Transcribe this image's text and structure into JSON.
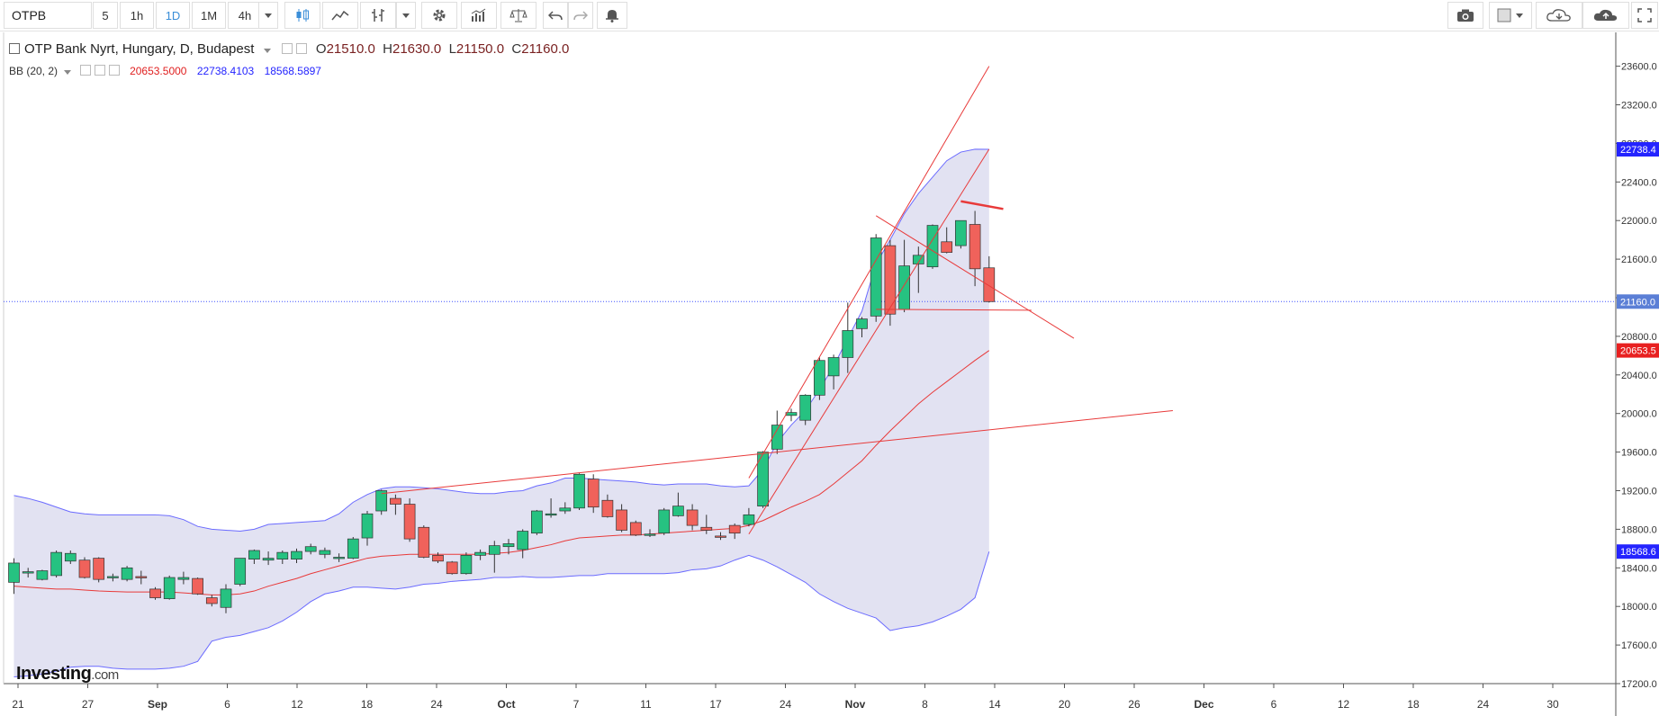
{
  "toolbar": {
    "symbol": "OTPB",
    "intervals": [
      "5",
      "1h",
      "1D",
      "1M",
      "4h"
    ],
    "active_interval": "1D"
  },
  "legend": {
    "title": "OTP Bank Nyrt, Hungary, D, Budapest",
    "open_label": "O",
    "open": "21510.0",
    "high_label": "H",
    "high": "21630.0",
    "low_label": "L",
    "low": "21150.0",
    "close_label": "C",
    "close": "21160.0",
    "bb_label": "BB (20, 2)",
    "bb_middle": "20653.5000",
    "bb_upper": "22738.4103",
    "bb_lower": "18568.5897"
  },
  "logo": {
    "main": "Investing",
    "suffix": ".com"
  },
  "colors": {
    "up": "#26c281",
    "down": "#f0625b",
    "band": "#6b6bff",
    "band_fill": "#e2e2f2",
    "middle": "#e83a3a",
    "trend": "#e83a3a",
    "price_line": "#3f51ff"
  },
  "chart_data": {
    "type": "candlestick",
    "title": "OTP Bank Nyrt, Hungary, D, Budapest",
    "x_tick_labels": [
      "21",
      "27",
      "Sep",
      "6",
      "12",
      "18",
      "24",
      "Oct",
      "7",
      "11",
      "17",
      "24",
      "Nov",
      "8",
      "14",
      "20",
      "26",
      "Dec",
      "6",
      "12",
      "18",
      "24",
      "30"
    ],
    "y_tick_labels": [
      "17200.0",
      "17600.0",
      "18000.0",
      "18400.0",
      "18800.0",
      "19200.0",
      "19600.0",
      "20000.0",
      "20400.0",
      "20800.0",
      "21200.0",
      "21600.0",
      "22000.0",
      "22400.0",
      "22800.0",
      "23200.0",
      "23600.0"
    ],
    "ylim": [
      17150,
      23900
    ],
    "price_tags": [
      {
        "label": "22738.4",
        "value": 22738.4,
        "color": "#2424ff"
      },
      {
        "label": "21160.0",
        "value": 21160.0,
        "color": "#5b7fd6"
      },
      {
        "label": "20653.5",
        "value": 20653.5,
        "color": "#e82020"
      },
      {
        "label": "18568.6",
        "value": 18568.6,
        "color": "#2424ff"
      }
    ],
    "last_close": 21160.0,
    "candles": [
      {
        "o": 18250,
        "h": 18500,
        "l": 18130,
        "c": 18450
      },
      {
        "o": 18350,
        "h": 18400,
        "l": 18300,
        "c": 18360
      },
      {
        "o": 18280,
        "h": 18380,
        "l": 18270,
        "c": 18370
      },
      {
        "o": 18320,
        "h": 18580,
        "l": 18300,
        "c": 18560
      },
      {
        "o": 18470,
        "h": 18580,
        "l": 18440,
        "c": 18550
      },
      {
        "o": 18480,
        "h": 18510,
        "l": 18290,
        "c": 18300
      },
      {
        "o": 18500,
        "h": 18510,
        "l": 18250,
        "c": 18280
      },
      {
        "o": 18300,
        "h": 18340,
        "l": 18260,
        "c": 18310
      },
      {
        "o": 18280,
        "h": 18420,
        "l": 18260,
        "c": 18400
      },
      {
        "o": 18310,
        "h": 18370,
        "l": 18230,
        "c": 18300
      },
      {
        "o": 18180,
        "h": 18200,
        "l": 18070,
        "c": 18090
      },
      {
        "o": 18080,
        "h": 18320,
        "l": 18070,
        "c": 18300
      },
      {
        "o": 18280,
        "h": 18360,
        "l": 18230,
        "c": 18300
      },
      {
        "o": 18290,
        "h": 18300,
        "l": 18120,
        "c": 18130
      },
      {
        "o": 18090,
        "h": 18120,
        "l": 18000,
        "c": 18030
      },
      {
        "o": 17990,
        "h": 18230,
        "l": 17930,
        "c": 18180
      },
      {
        "o": 18230,
        "h": 18500,
        "l": 18210,
        "c": 18500
      },
      {
        "o": 18490,
        "h": 18590,
        "l": 18440,
        "c": 18580
      },
      {
        "o": 18480,
        "h": 18570,
        "l": 18430,
        "c": 18500
      },
      {
        "o": 18490,
        "h": 18580,
        "l": 18440,
        "c": 18560
      },
      {
        "o": 18490,
        "h": 18600,
        "l": 18450,
        "c": 18570
      },
      {
        "o": 18570,
        "h": 18650,
        "l": 18540,
        "c": 18620
      },
      {
        "o": 18540,
        "h": 18610,
        "l": 18500,
        "c": 18580
      },
      {
        "o": 18500,
        "h": 18550,
        "l": 18460,
        "c": 18510
      },
      {
        "o": 18500,
        "h": 18720,
        "l": 18490,
        "c": 18700
      },
      {
        "o": 18710,
        "h": 18990,
        "l": 18630,
        "c": 18960
      },
      {
        "o": 18990,
        "h": 19210,
        "l": 18950,
        "c": 19200
      },
      {
        "o": 19120,
        "h": 19160,
        "l": 18950,
        "c": 19060
      },
      {
        "o": 19060,
        "h": 19120,
        "l": 18670,
        "c": 18700
      },
      {
        "o": 18820,
        "h": 18840,
        "l": 18500,
        "c": 18510
      },
      {
        "o": 18530,
        "h": 18560,
        "l": 18450,
        "c": 18470
      },
      {
        "o": 18460,
        "h": 18470,
        "l": 18330,
        "c": 18340
      },
      {
        "o": 18340,
        "h": 18560,
        "l": 18330,
        "c": 18530
      },
      {
        "o": 18530,
        "h": 18590,
        "l": 18480,
        "c": 18560
      },
      {
        "o": 18540,
        "h": 18680,
        "l": 18350,
        "c": 18630
      },
      {
        "o": 18620,
        "h": 18700,
        "l": 18540,
        "c": 18650
      },
      {
        "o": 18590,
        "h": 18800,
        "l": 18500,
        "c": 18780
      },
      {
        "o": 18760,
        "h": 19000,
        "l": 18740,
        "c": 18990
      },
      {
        "o": 18950,
        "h": 19120,
        "l": 18920,
        "c": 18960
      },
      {
        "o": 18990,
        "h": 19080,
        "l": 18960,
        "c": 19020
      },
      {
        "o": 19020,
        "h": 19380,
        "l": 19000,
        "c": 19370
      },
      {
        "o": 19320,
        "h": 19370,
        "l": 18970,
        "c": 19030
      },
      {
        "o": 19100,
        "h": 19160,
        "l": 18920,
        "c": 18930
      },
      {
        "o": 19000,
        "h": 19060,
        "l": 18770,
        "c": 18790
      },
      {
        "o": 18870,
        "h": 18890,
        "l": 18730,
        "c": 18740
      },
      {
        "o": 18740,
        "h": 18800,
        "l": 18720,
        "c": 18750
      },
      {
        "o": 18760,
        "h": 19020,
        "l": 18740,
        "c": 19000
      },
      {
        "o": 18940,
        "h": 19180,
        "l": 18930,
        "c": 19040
      },
      {
        "o": 19000,
        "h": 19060,
        "l": 18790,
        "c": 18840
      },
      {
        "o": 18820,
        "h": 18950,
        "l": 18750,
        "c": 18790
      },
      {
        "o": 18730,
        "h": 18770,
        "l": 18690,
        "c": 18720
      },
      {
        "o": 18840,
        "h": 18860,
        "l": 18700,
        "c": 18760
      },
      {
        "o": 18850,
        "h": 19020,
        "l": 18830,
        "c": 18950
      },
      {
        "o": 19040,
        "h": 19610,
        "l": 19020,
        "c": 19600
      },
      {
        "o": 19630,
        "h": 20030,
        "l": 19580,
        "c": 19880
      },
      {
        "o": 19980,
        "h": 20050,
        "l": 19920,
        "c": 20010
      },
      {
        "o": 19930,
        "h": 20200,
        "l": 19880,
        "c": 20190
      },
      {
        "o": 20190,
        "h": 20580,
        "l": 20140,
        "c": 20550
      },
      {
        "o": 20390,
        "h": 20610,
        "l": 20250,
        "c": 20580
      },
      {
        "o": 20580,
        "h": 21150,
        "l": 20420,
        "c": 20860
      },
      {
        "o": 20880,
        "h": 21000,
        "l": 20790,
        "c": 20980
      },
      {
        "o": 21010,
        "h": 21860,
        "l": 20950,
        "c": 21820
      },
      {
        "o": 21740,
        "h": 21800,
        "l": 20910,
        "c": 21030
      },
      {
        "o": 21080,
        "h": 21800,
        "l": 21050,
        "c": 21530
      },
      {
        "o": 21550,
        "h": 21730,
        "l": 21250,
        "c": 21640
      },
      {
        "o": 21520,
        "h": 21960,
        "l": 21500,
        "c": 21950
      },
      {
        "o": 21780,
        "h": 21930,
        "l": 21660,
        "c": 21670
      },
      {
        "o": 21740,
        "h": 22000,
        "l": 21710,
        "c": 22000
      },
      {
        "o": 21960,
        "h": 22100,
        "l": 21320,
        "c": 21500
      },
      {
        "o": 21510,
        "h": 21630,
        "l": 21150,
        "c": 21160
      }
    ],
    "bb_upper_series": [
      19150,
      19120,
      19080,
      19030,
      18980,
      18960,
      18950,
      18950,
      18950,
      18950,
      18950,
      18940,
      18900,
      18830,
      18800,
      18790,
      18780,
      18800,
      18850,
      18860,
      18870,
      18880,
      18890,
      18960,
      19080,
      19160,
      19220,
      19240,
      19240,
      19230,
      19220,
      19200,
      19180,
      19170,
      19170,
      19190,
      19200,
      19250,
      19280,
      19330,
      19330,
      19320,
      19310,
      19300,
      19290,
      19270,
      19260,
      19270,
      19270,
      19270,
      19250,
      19240,
      19250,
      19420,
      19700,
      19880,
      20030,
      20250,
      20490,
      20780,
      21060,
      21550,
      21800,
      22070,
      22280,
      22450,
      22620,
      22710,
      22740,
      22738
    ],
    "bb_middle_series": [
      18210,
      18200,
      18190,
      18180,
      18180,
      18170,
      18160,
      18155,
      18150,
      18150,
      18150,
      18150,
      18140,
      18130,
      18120,
      18120,
      18130,
      18160,
      18210,
      18250,
      18290,
      18340,
      18380,
      18420,
      18460,
      18500,
      18520,
      18530,
      18540,
      18540,
      18540,
      18540,
      18540,
      18540,
      18550,
      18560,
      18580,
      18610,
      18640,
      18680,
      18710,
      18720,
      18730,
      18740,
      18740,
      18750,
      18760,
      18770,
      18780,
      18790,
      18800,
      18810,
      18840,
      18890,
      18960,
      19030,
      19090,
      19160,
      19270,
      19390,
      19510,
      19670,
      19820,
      19960,
      20100,
      20220,
      20330,
      20440,
      20550,
      20653
    ],
    "bb_lower_series": [
      17270,
      17280,
      17300,
      17330,
      17370,
      17380,
      17380,
      17360,
      17350,
      17350,
      17350,
      17360,
      17380,
      17430,
      17640,
      17680,
      17700,
      17740,
      17780,
      17850,
      17940,
      18050,
      18130,
      18160,
      18200,
      18200,
      18190,
      18180,
      18200,
      18230,
      18240,
      18260,
      18270,
      18280,
      18300,
      18300,
      18310,
      18300,
      18300,
      18310,
      18320,
      18320,
      18340,
      18340,
      18340,
      18340,
      18340,
      18350,
      18380,
      18390,
      18420,
      18480,
      18530,
      18480,
      18410,
      18330,
      18250,
      18130,
      18050,
      17980,
      17930,
      17880,
      17750,
      17780,
      17800,
      17840,
      17900,
      17970,
      18090,
      18568
    ],
    "trendlines": [
      {
        "from": [
          26,
          19170
        ],
        "to": [
          82,
          20030
        ]
      },
      {
        "from": [
          52,
          19330
        ],
        "to": [
          69,
          23600
        ]
      },
      {
        "from": [
          52,
          18750
        ],
        "to": [
          69,
          22740
        ]
      },
      {
        "from": [
          61,
          22050
        ],
        "to": [
          75,
          20780
        ]
      },
      {
        "from": [
          67,
          22200
        ],
        "to": [
          70,
          22120
        ]
      },
      {
        "from": [
          61,
          21080
        ],
        "to": [
          72,
          21070
        ]
      }
    ]
  }
}
